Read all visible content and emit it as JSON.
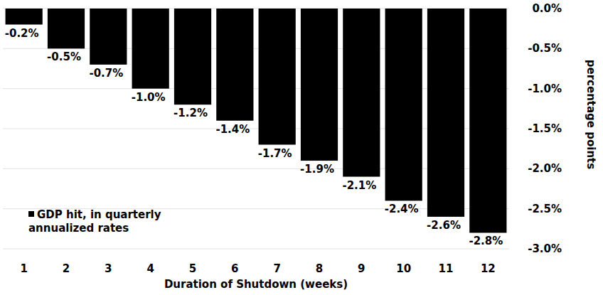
{
  "chart_data": {
    "type": "bar",
    "categories": [
      "1",
      "2",
      "3",
      "4",
      "5",
      "6",
      "7",
      "8",
      "9",
      "10",
      "11",
      "12"
    ],
    "series": [
      {
        "name": "GDP hit, in quarterly annualized rates",
        "color": "#000000",
        "values": [
          -0.2,
          -0.5,
          -0.7,
          -1.0,
          -1.2,
          -1.4,
          -1.7,
          -1.9,
          -2.1,
          -2.4,
          -2.6,
          -2.8
        ],
        "value_labels": [
          "-0.2%",
          "-0.5%",
          "-0.7%",
          "-1.0%",
          "-1.2%",
          "-1.4%",
          "-1.7%",
          "-1.9%",
          "-2.1%",
          "-2.4%",
          "-2.6%",
          "-2.8%"
        ]
      }
    ],
    "x_label": "Duration of Shutdown (weeks)",
    "y_label": "percentage points",
    "ylim": [
      -3.0,
      0.0
    ],
    "yticks": [
      {
        "value": 0.0,
        "label": "0.0%"
      },
      {
        "value": -0.5,
        "label": "-0.5%"
      },
      {
        "value": -1.0,
        "label": "-1.0%"
      },
      {
        "value": -1.5,
        "label": "-1.5%"
      },
      {
        "value": -2.0,
        "label": "-2.0%"
      },
      {
        "value": -2.5,
        "label": "-2.5%"
      },
      {
        "value": -3.0,
        "label": "-3.0%"
      }
    ],
    "grid": true,
    "data_labels": true,
    "legend": "lower left"
  }
}
